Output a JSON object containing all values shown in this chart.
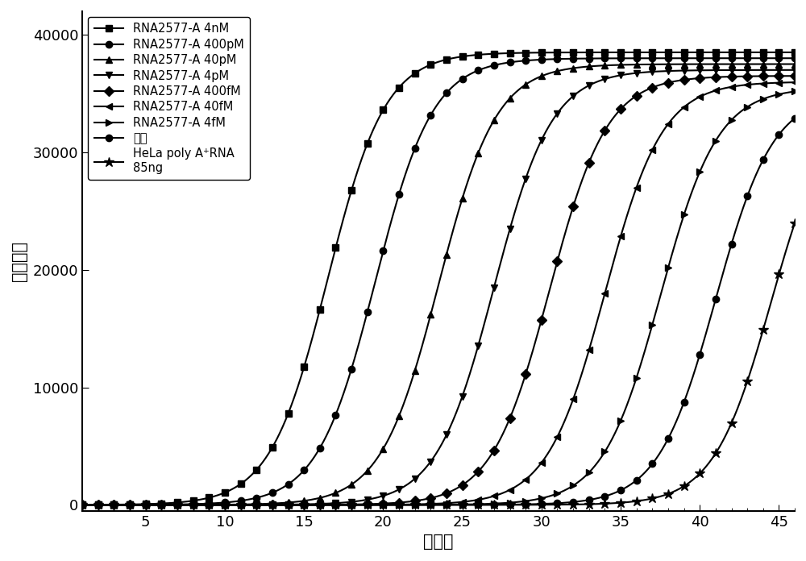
{
  "series": [
    {
      "label": "RNA2577-A 4nM",
      "midpoint": 16.5,
      "slope": 0.55,
      "ymax": 38500,
      "marker": "s"
    },
    {
      "label": "RNA2577-A 400pM",
      "midpoint": 19.5,
      "slope": 0.55,
      "ymax": 38000,
      "marker": "o"
    },
    {
      "label": "RNA2577-A 40pM",
      "midpoint": 23.5,
      "slope": 0.55,
      "ymax": 37500,
      "marker": "^"
    },
    {
      "label": "RNA2577-A 4pM",
      "midpoint": 27.0,
      "slope": 0.55,
      "ymax": 37000,
      "marker": "v"
    },
    {
      "label": "RNA2577-A 400fM",
      "midpoint": 30.5,
      "slope": 0.55,
      "ymax": 36500,
      "marker": "D"
    },
    {
      "label": "RNA2577-A 40fM",
      "midpoint": 34.0,
      "slope": 0.55,
      "ymax": 36000,
      "marker": "<"
    },
    {
      "label": "RNA2577-A 4fM",
      "midpoint": 37.5,
      "slope": 0.55,
      "ymax": 35500,
      "marker": ">"
    },
    {
      "label": "空白",
      "midpoint": 41.0,
      "slope": 0.55,
      "ymax": 35000,
      "marker": "o"
    },
    {
      "label": "HeLa poly A⁺RNA\n85ng",
      "midpoint": 44.5,
      "slope": 0.55,
      "ymax": 34500,
      "marker": "*"
    }
  ],
  "xlabel": "循环数",
  "ylabel": "荧光强度",
  "xlim": [
    1,
    46
  ],
  "ylim": [
    -500,
    42000
  ],
  "yticks": [
    0,
    10000,
    20000,
    30000,
    40000
  ],
  "xticks": [
    5,
    10,
    15,
    20,
    25,
    30,
    35,
    40,
    45
  ],
  "color": "black",
  "linewidth": 1.5,
  "markersize": 6,
  "star_markersize": 9,
  "markevery": 1,
  "legend_fontsize": 10.5,
  "axis_label_fontsize": 15,
  "tick_fontsize": 13
}
